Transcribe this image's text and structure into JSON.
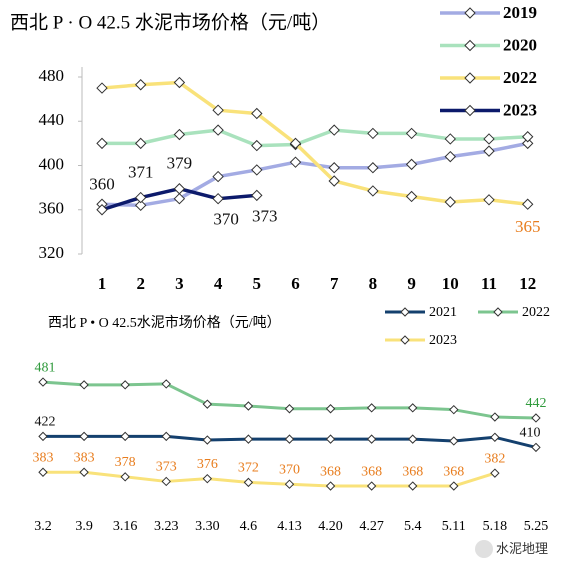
{
  "chart_data": [
    {
      "type": "line",
      "title": "西北 P · O 42.5 水泥市场价格（元/吨）",
      "categories": [
        "1",
        "2",
        "3",
        "4",
        "5",
        "6",
        "7",
        "8",
        "9",
        "10",
        "11",
        "12"
      ],
      "ylim": [
        320,
        480
      ],
      "yticks": [
        320,
        360,
        400,
        440,
        480
      ],
      "grid": false,
      "legend": "top-right",
      "series": [
        {
          "name": "2019",
          "color": "#a3abe3",
          "values": [
            365,
            364,
            370,
            390,
            396,
            403,
            398,
            398,
            401,
            408,
            413,
            420
          ]
        },
        {
          "name": "2020",
          "color": "#a9e2bd",
          "values": [
            420,
            420,
            428,
            432,
            418,
            419,
            432,
            429,
            429,
            424,
            424,
            426
          ]
        },
        {
          "name": "2022",
          "color": "#f9e27a",
          "values": [
            470,
            473,
            475,
            450,
            447,
            420,
            386,
            377,
            372,
            367,
            369,
            365
          ],
          "data_labels": "last",
          "label_color": "#e87d1e"
        },
        {
          "name": "2023",
          "color": "#0c1a6b",
          "values": [
            360,
            371,
            379,
            370,
            373,
            null,
            null,
            null,
            null,
            null,
            null,
            null
          ],
          "data_labels": "all",
          "label_color": "#111111"
        }
      ]
    },
    {
      "type": "line",
      "title": "西北  P • O 42.5水泥市场价格（元/吨）",
      "categories": [
        "3.2",
        "3.9",
        "3.16",
        "3.23",
        "3.30",
        "4.6",
        "4.13",
        "4.20",
        "4.27",
        "5.4",
        "5.11",
        "5.18",
        "5.25"
      ],
      "ylim": [
        355,
        505
      ],
      "grid": false,
      "legend": "top-right",
      "series": [
        {
          "name": "2021",
          "color": "#14406e",
          "values": [
            422,
            422,
            422,
            422,
            418,
            419,
            419,
            419,
            419,
            419,
            417,
            421,
            410
          ],
          "data_labels": "first_last",
          "label_color": "#111111"
        },
        {
          "name": "2022",
          "color": "#7cc58f",
          "values": [
            481,
            478,
            478,
            479,
            457,
            455,
            452,
            452,
            453,
            453,
            451,
            443,
            442
          ],
          "data_labels": "first_last",
          "label_color": "#2f9a3c"
        },
        {
          "name": "2023",
          "color": "#f9e27a",
          "values": [
            383,
            383,
            378,
            373,
            376,
            372,
            370,
            368,
            368,
            368,
            368,
            382,
            null
          ],
          "data_labels": "all",
          "label_color": "#e87d1e"
        }
      ]
    }
  ],
  "watermark": "水泥地理"
}
